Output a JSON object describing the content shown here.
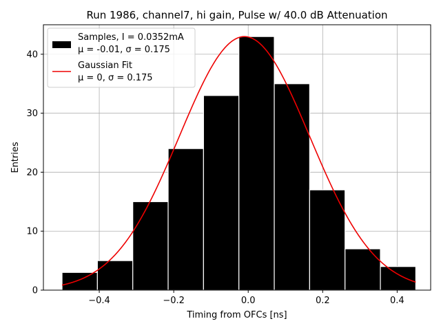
{
  "chart_data": {
    "type": "bar",
    "title": "Run 1986, channel7, hi gain, Pulse w/ 40.0 dB Attenuation",
    "xlabel": "Timing from OFCs [ns]",
    "ylabel": "Entries",
    "xlim": [
      -0.55,
      0.49
    ],
    "ylim": [
      0,
      45
    ],
    "xticks": [
      -0.4,
      -0.2,
      0.0,
      0.2,
      0.4
    ],
    "xtick_labels": [
      "−0.4",
      "−0.2",
      "0.0",
      "0.2",
      "0.4"
    ],
    "yticks": [
      0,
      10,
      20,
      30,
      40
    ],
    "ytick_labels": [
      "0",
      "10",
      "20",
      "30",
      "40"
    ],
    "grid": true,
    "legend_position": "top-left",
    "bins": [
      {
        "x0": -0.5,
        "x1": -0.405,
        "count": 3
      },
      {
        "x0": -0.405,
        "x1": -0.31,
        "count": 5
      },
      {
        "x0": -0.31,
        "x1": -0.215,
        "count": 15
      },
      {
        "x0": -0.215,
        "x1": -0.12,
        "count": 24
      },
      {
        "x0": -0.12,
        "x1": -0.025,
        "count": 33
      },
      {
        "x0": -0.025,
        "x1": 0.07,
        "count": 43
      },
      {
        "x0": 0.07,
        "x1": 0.165,
        "count": 35
      },
      {
        "x0": 0.165,
        "x1": 0.26,
        "count": 17
      },
      {
        "x0": 0.26,
        "x1": 0.355,
        "count": 7
      },
      {
        "x0": 0.355,
        "x1": 0.45,
        "count": 4
      }
    ],
    "fit": {
      "amplitude": 43,
      "mean": -0.01,
      "sigma": 0.175,
      "x_range": [
        -0.5,
        0.45
      ]
    },
    "series": [
      {
        "name": "Samples, I = 0.0352mA",
        "stats": "μ = -0.01, σ = 0.175",
        "color": "#000000",
        "kind": "histogram"
      },
      {
        "name": "Gaussian Fit",
        "stats": "μ = 0, σ = 0.175",
        "color": "#ee0000",
        "kind": "line"
      }
    ]
  }
}
